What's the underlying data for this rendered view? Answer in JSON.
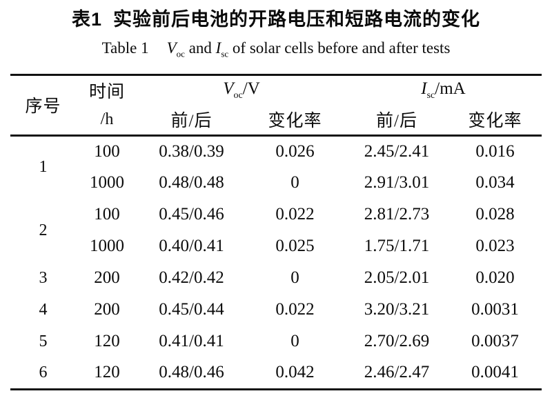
{
  "document": {
    "title_zh": {
      "label": "表1",
      "text": "实验前后电池的开路电压和短路电流的变化"
    },
    "title_en": {
      "label": "Table 1",
      "voc_symbol": "V",
      "voc_sub": "oc",
      "conj": "and",
      "isc_symbol": "I",
      "isc_sub": "sc",
      "rest": "of solar cells before and after tests"
    }
  },
  "table": {
    "headers": {
      "serial": "序号",
      "time_top": "时间",
      "time_bottom": "/h",
      "voc_symbol": "V",
      "voc_sub": "oc",
      "voc_unit": "/V",
      "isc_symbol": "I",
      "isc_sub": "sc",
      "isc_unit": "/mA",
      "before_after": "前/后",
      "change_rate": "变化率"
    },
    "rows": [
      {
        "serial": "1",
        "time": "100",
        "voc": "0.38/0.39",
        "voc_rate": "0.026",
        "isc": "2.45/2.41",
        "isc_rate": "0.016"
      },
      {
        "time": "1000",
        "voc": "0.48/0.48",
        "voc_rate": "0",
        "isc": "2.91/3.01",
        "isc_rate": "0.034"
      },
      {
        "serial": "2",
        "time": "100",
        "voc": "0.45/0.46",
        "voc_rate": "0.022",
        "isc": "2.81/2.73",
        "isc_rate": "0.028"
      },
      {
        "time": "1000",
        "voc": "0.40/0.41",
        "voc_rate": "0.025",
        "isc": "1.75/1.71",
        "isc_rate": "0.023"
      },
      {
        "serial": "3",
        "time": "200",
        "voc": "0.42/0.42",
        "voc_rate": "0",
        "isc": "2.05/2.01",
        "isc_rate": "0.020"
      },
      {
        "serial": "4",
        "time": "200",
        "voc": "0.45/0.44",
        "voc_rate": "0.022",
        "isc": "3.20/3.21",
        "isc_rate": "0.0031"
      },
      {
        "serial": "5",
        "time": "120",
        "voc": "0.41/0.41",
        "voc_rate": "0",
        "isc": "2.70/2.69",
        "isc_rate": "0.0037"
      },
      {
        "serial": "6",
        "time": "120",
        "voc": "0.48/0.46",
        "voc_rate": "0.042",
        "isc": "2.46/2.47",
        "isc_rate": "0.0041"
      }
    ]
  }
}
